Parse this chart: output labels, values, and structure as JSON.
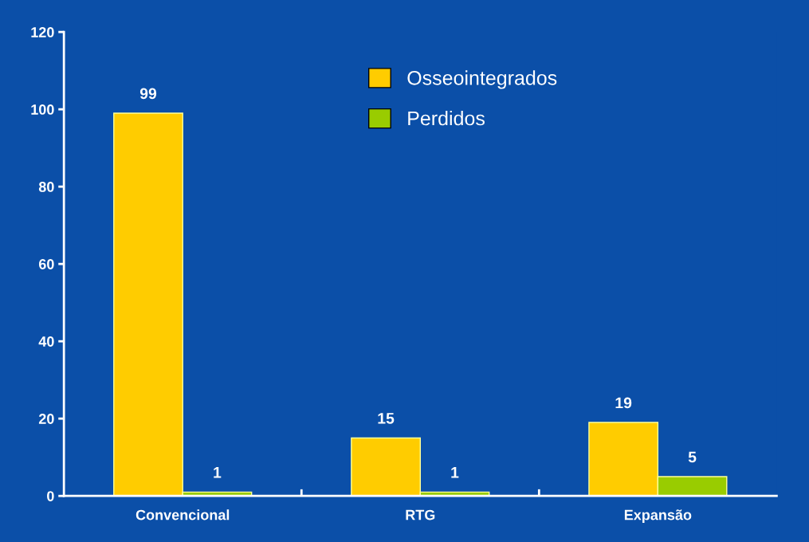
{
  "chart_data": {
    "type": "bar",
    "categories": [
      "Convencional",
      "RTG",
      "Expansão"
    ],
    "series": [
      {
        "name": "Osseointegrados",
        "color": "#ffcc00",
        "values": [
          99,
          15,
          19
        ]
      },
      {
        "name": "Perdidos",
        "color": "#99cc00",
        "values": [
          1,
          1,
          5
        ]
      }
    ],
    "ylim": [
      0,
      120
    ],
    "yticks": [
      0,
      20,
      40,
      60,
      80,
      100,
      120
    ],
    "data_labels": true,
    "legend": "top",
    "grid": false
  }
}
